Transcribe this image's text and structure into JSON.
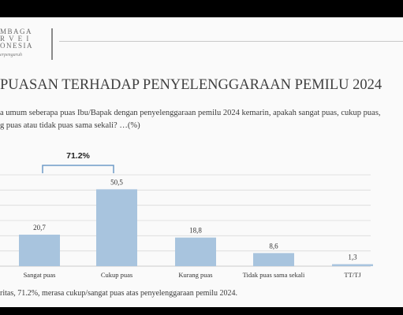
{
  "header": {
    "logo_line1": "MBAGA",
    "logo_line2": "R V E I",
    "logo_line3": "ONESIA",
    "logo_tagline": "erpengaruh"
  },
  "title": "PUASAN TERHADAP PENYELENGGARAAN PEMILU 2024",
  "question_line1": "a umum seberapa puas Ibu/Bapak dengan penyelenggaraan pemilu 2024 kemarin, apakah sangat puas, cukup puas,",
  "question_line2": "g puas atau tidak puas sama sekali? …(%)",
  "bracket_label": "71.2%",
  "footnote": "ritas, 71.2%, merasa cukup/sangat puas atas penyelenggaraan pemilu 2024.",
  "colors": {
    "bar": "#a8c4de",
    "bracket": "#6e9bc8",
    "grid": "#d9d9d9"
  },
  "chart_data": {
    "type": "bar",
    "categories": [
      "Sangat puas",
      "Cukup puas",
      "Kurang puas",
      "Tidak puas sama sekali",
      "TT/TJ"
    ],
    "values": [
      20.7,
      50.5,
      18.8,
      8.6,
      1.3
    ],
    "value_labels": [
      "20,7",
      "50,5",
      "18,8",
      "8,6",
      "1,3"
    ],
    "ylim": [
      0,
      60
    ],
    "grid": true,
    "bracket": {
      "categories": [
        "Sangat puas",
        "Cukup puas"
      ],
      "label": "71.2%"
    }
  }
}
